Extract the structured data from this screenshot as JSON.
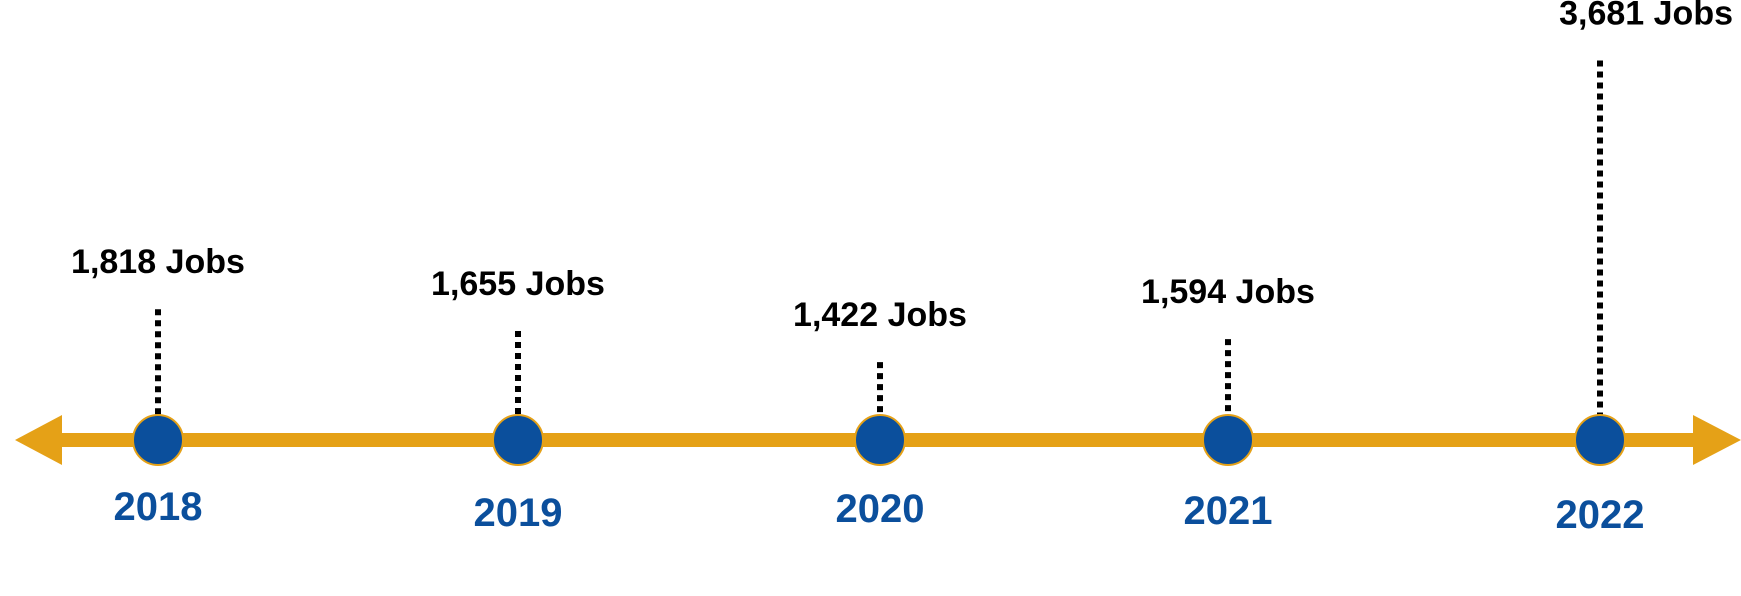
{
  "chart_data": {
    "type": "timeline",
    "categories": [
      "2018",
      "2019",
      "2020",
      "2021",
      "2022"
    ],
    "values": [
      1818,
      1655,
      1422,
      1594,
      3681
    ],
    "value_labels": [
      "1,818 Jobs",
      "1,655 Jobs",
      "1,422 Jobs",
      "1,594 Jobs",
      "3,681 Jobs"
    ],
    "unit": "Jobs",
    "title": "",
    "xlabel": "",
    "ylabel": "",
    "grid": false,
    "legend": "none"
  },
  "colors": {
    "axis": "#E5A117",
    "marker": "#0B4F9C",
    "marker_outline": "#E5A117",
    "year_text": "#0B4F9C",
    "leader": "#000000",
    "label_text": "#000000"
  }
}
